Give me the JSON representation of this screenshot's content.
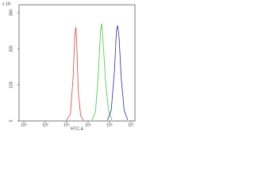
{
  "chart_data": {
    "type": "line",
    "x_label": "FITC-A",
    "annotation": "x 10¹",
    "xscale": "log",
    "xlim": [
      100,
      10000000
    ],
    "xticks": [
      {
        "value": 100,
        "label": "10²"
      },
      {
        "value": 1000,
        "label": "10³"
      },
      {
        "value": 10000,
        "label": "10⁴"
      },
      {
        "value": 100000,
        "label": "10⁵"
      },
      {
        "value": 1000000,
        "label": "10⁶"
      },
      {
        "value": 10000000,
        "label": "10⁷"
      }
    ],
    "ylim": [
      0,
      300
    ],
    "yticks": [
      0,
      100,
      200,
      300
    ],
    "series": [
      {
        "color": "#e0403c",
        "x": [
          10000,
          15000,
          20000,
          24000,
          27000,
          30000,
          35000,
          45000,
          60000
        ],
        "values": [
          2,
          20,
          120,
          240,
          260,
          200,
          80,
          15,
          2
        ]
      },
      {
        "color": "#3ccc3c",
        "x": [
          150000,
          220000,
          300000,
          380000,
          430000,
          500000,
          650000,
          900000,
          1300000
        ],
        "values": [
          2,
          25,
          130,
          250,
          270,
          220,
          110,
          30,
          3
        ]
      },
      {
        "color": "#2a2ab4",
        "x": [
          800000,
          1200000,
          1700000,
          2100000,
          2400000,
          2800000,
          3500000,
          4800000,
          7000000
        ],
        "values": [
          2,
          30,
          140,
          250,
          265,
          230,
          120,
          30,
          3
        ]
      }
    ]
  }
}
